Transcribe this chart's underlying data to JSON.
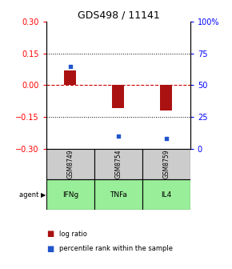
{
  "title": "GDS498 / 11141",
  "samples": [
    "GSM8749",
    "GSM8754",
    "GSM8759"
  ],
  "agents": [
    "IFNg",
    "TNFa",
    "IL4"
  ],
  "log_ratios": [
    0.07,
    -0.11,
    -0.12
  ],
  "percentile_ranks": [
    65,
    10,
    8
  ],
  "ylim_left": [
    -0.3,
    0.3
  ],
  "ylim_right": [
    0,
    100
  ],
  "yticks_left": [
    -0.3,
    -0.15,
    0,
    0.15,
    0.3
  ],
  "yticks_right": [
    0,
    25,
    50,
    75,
    100
  ],
  "ytick_labels_right": [
    "0",
    "25",
    "50",
    "75",
    "100%"
  ],
  "bar_color": "#aa1111",
  "dot_color": "#2255cc",
  "hline_color": "#cc0000",
  "agent_bg_color": "#99ee99",
  "sample_bg_color": "#cccccc",
  "bar_width": 0.25,
  "title_fontsize": 9,
  "tick_fontsize": 7,
  "legend_fontsize": 6,
  "table_label_fontsize": 6.5,
  "sample_label_fontsize": 5.5
}
